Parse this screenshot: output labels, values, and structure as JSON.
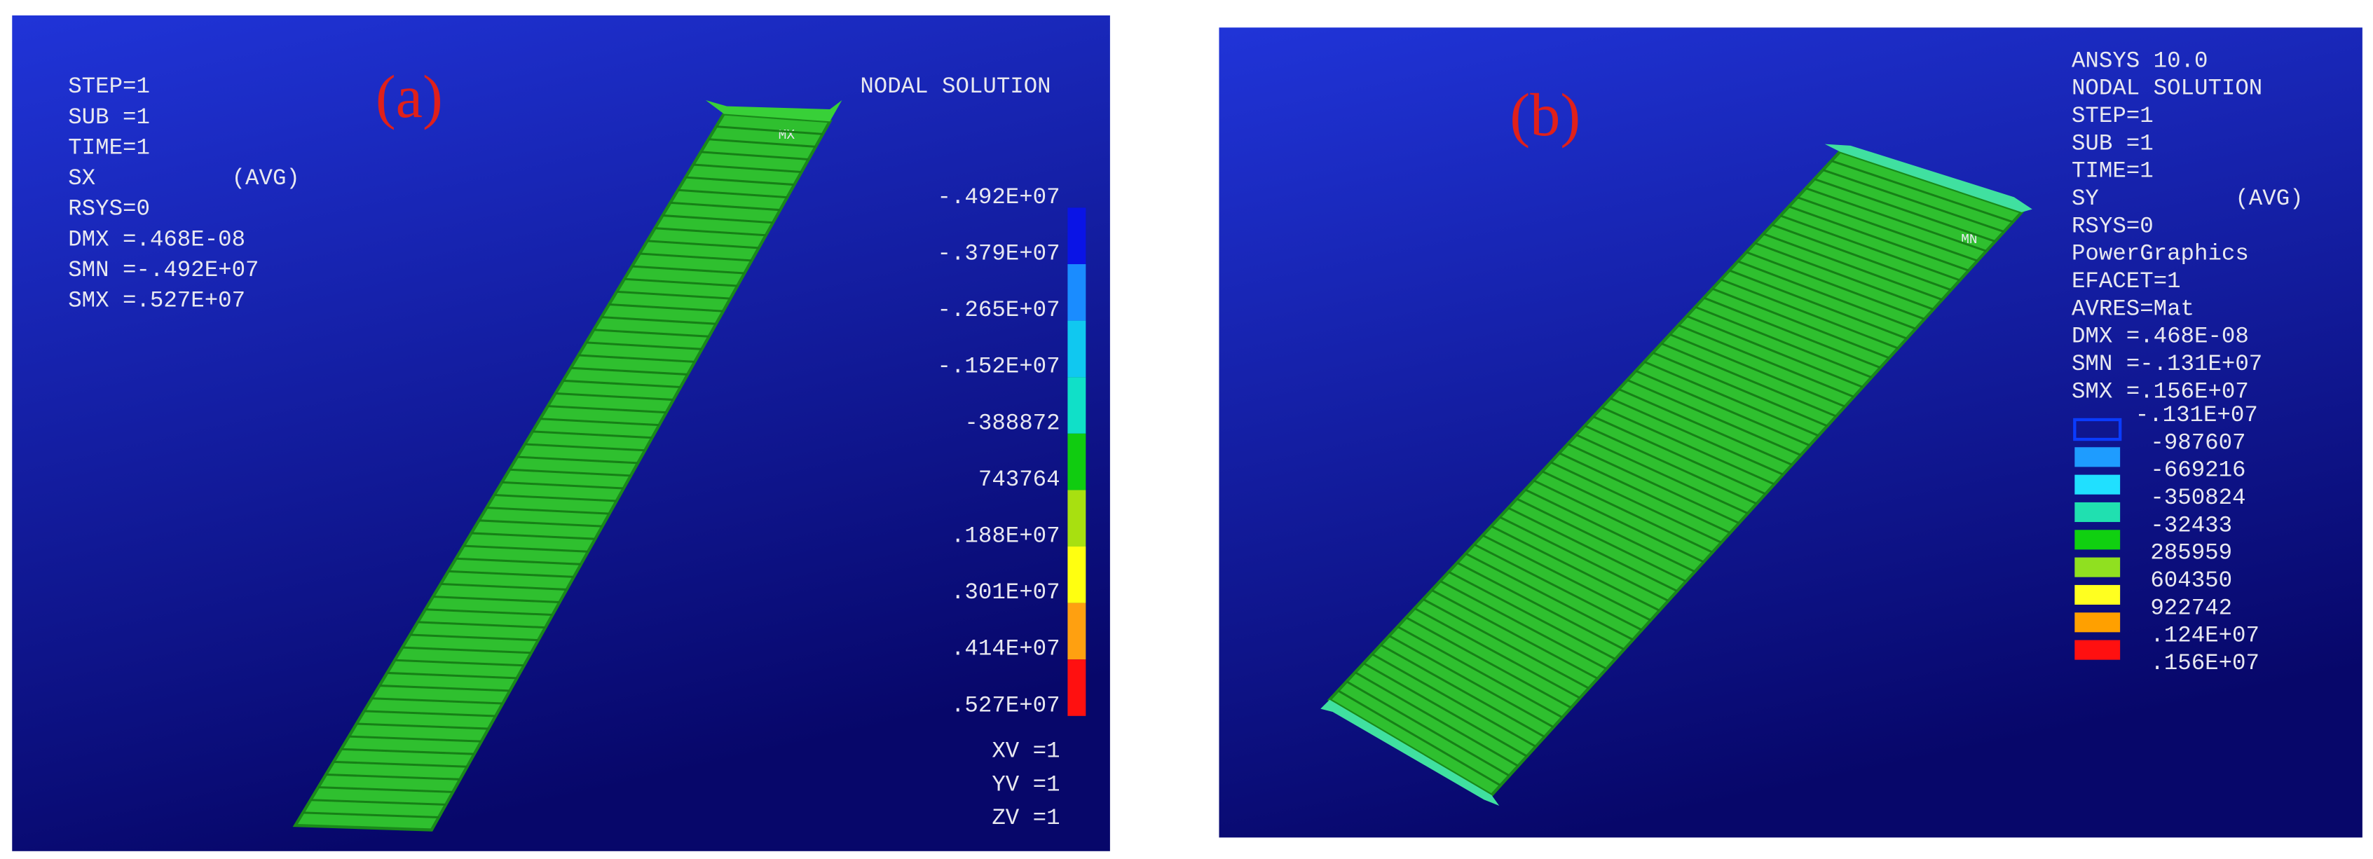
{
  "panel_a": {
    "label": "(a)",
    "title": "NODAL SOLUTION",
    "info": [
      "STEP=1",
      "SUB =1",
      "TIME=1",
      "SX          (AVG)",
      "RSYS=0",
      "DMX =.468E-08",
      "SMN =-.492E+07",
      "SMX =.527E+07"
    ],
    "legend": [
      "-.492E+07",
      "-.379E+07",
      "-.265E+07",
      "-.152E+07",
      "-388872",
      "743764",
      ".188E+07",
      ".301E+07",
      ".414E+07",
      ".527E+07"
    ],
    "colors": [
      "#0a14e6",
      "#1a8cff",
      "#10c8f0",
      "#10e0c8",
      "#10cc10",
      "#a8e010",
      "#ffff10",
      "#ffa010",
      "#ff1010"
    ],
    "view": [
      "XV =1",
      "YV =1",
      "ZV =1"
    ],
    "marker": "MX"
  },
  "panel_b": {
    "label": "(b)",
    "info": [
      "ANSYS 10.0",
      "NODAL SOLUTION",
      "STEP=1",
      "SUB =1",
      "TIME=1",
      "SY          (AVG)",
      "RSYS=0",
      "PowerGraphics",
      "EFACET=1",
      "AVRES=Mat",
      "DMX =.468E-08",
      "SMN =-.131E+07",
      "SMX =.156E+07"
    ],
    "legend": [
      "-.131E+07",
      "-987607",
      "-669216",
      "-350824",
      "-32433",
      "285959",
      "604350",
      "922742",
      ".124E+07",
      ".156E+07"
    ],
    "colors": [
      "#0a3cff",
      "#1e9cff",
      "#20e0ff",
      "#20e0b0",
      "#10d010",
      "#90e020",
      "#ffff20",
      "#ffa000",
      "#ff1010"
    ],
    "marker": "MN"
  }
}
